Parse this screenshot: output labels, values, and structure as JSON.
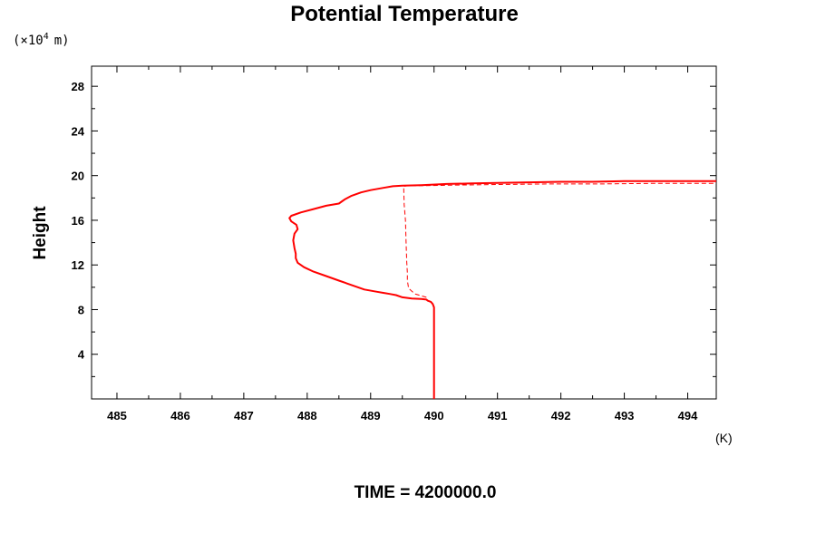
{
  "chart_data": {
    "type": "line",
    "title": "Potential Temperature",
    "ylabel": "Height",
    "y_scale_prefix": "(×10",
    "y_scale_exponent": "4",
    "y_scale_unit": "m)",
    "xlabel": "(K)",
    "footer": "TIME = 4200000.0",
    "xlim": [
      484.6,
      494.45
    ],
    "ylim": [
      0,
      29.8
    ],
    "x_ticks": [
      485,
      486,
      487,
      488,
      489,
      490,
      491,
      492,
      493,
      494
    ],
    "x_tick_labels": [
      "485",
      "486",
      "487",
      "488",
      "489",
      "490",
      "491",
      "492",
      "493",
      "494"
    ],
    "y_ticks": [
      4,
      8,
      12,
      16,
      20,
      24,
      28
    ],
    "y_tick_labels": [
      "4",
      "8",
      "12",
      "16",
      "20",
      "24",
      "28"
    ],
    "series": [
      {
        "style": "solid",
        "color": "#ff0000",
        "x": [
          490.0,
          490.0,
          490.0,
          490.0,
          490.0,
          490.0,
          489.98,
          489.95,
          489.9,
          489.88,
          489.8,
          489.65,
          489.5,
          489.4,
          489.3,
          489.2,
          489.1,
          488.9,
          488.7,
          488.5,
          488.3,
          488.1,
          487.95,
          487.85,
          487.82,
          487.82,
          487.8,
          487.78,
          487.8,
          487.85,
          487.83,
          487.75,
          487.72,
          487.75,
          487.9,
          488.1,
          488.3,
          488.5,
          488.55,
          488.6,
          488.7,
          488.85,
          489.0,
          489.2,
          489.35,
          489.5,
          489.8,
          490.2,
          490.6,
          491.0,
          491.5,
          492.0,
          492.5,
          493.0,
          493.5,
          494.0,
          494.45
        ],
        "y": [
          0.0,
          2.0,
          4.0,
          6.0,
          7.5,
          8.2,
          8.5,
          8.7,
          8.8,
          8.9,
          8.95,
          9.0,
          9.1,
          9.3,
          9.4,
          9.5,
          9.6,
          9.8,
          10.2,
          10.6,
          11.0,
          11.4,
          11.8,
          12.2,
          12.6,
          13.0,
          13.5,
          14.2,
          14.8,
          15.2,
          15.6,
          15.9,
          16.2,
          16.4,
          16.7,
          17.0,
          17.3,
          17.5,
          17.7,
          17.9,
          18.2,
          18.5,
          18.7,
          18.9,
          19.05,
          19.1,
          19.15,
          19.25,
          19.3,
          19.35,
          19.4,
          19.45,
          19.45,
          19.5,
          19.5,
          19.5,
          19.5
        ]
      },
      {
        "style": "dashed",
        "color": "#ff0000",
        "x": [
          489.88,
          489.7,
          489.6,
          489.58,
          489.58,
          489.57,
          489.56,
          489.55,
          489.53,
          489.52,
          489.6,
          489.85,
          490.3,
          491.0,
          491.8,
          492.6,
          493.4,
          494.0,
          494.45
        ],
        "y": [
          9.1,
          9.4,
          9.9,
          10.6,
          11.3,
          12.3,
          14.0,
          16.0,
          17.4,
          19.05,
          19.1,
          19.1,
          19.15,
          19.2,
          19.25,
          19.25,
          19.3,
          19.3,
          19.3
        ]
      }
    ]
  }
}
